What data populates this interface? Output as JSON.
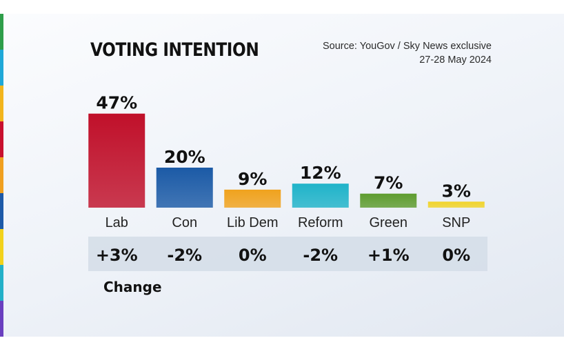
{
  "header": {
    "title": "VOTING INTENTION",
    "source_line1": "Source: YouGov / Sky News exclusive",
    "source_line2": "27-28 May 2024"
  },
  "change_caption": "Change",
  "accent_strip_colors": [
    "#2e9e4a",
    "#1fa8d8",
    "#f2b51c",
    "#c8102e",
    "#f0a020",
    "#1d5aa8",
    "#f2d21c",
    "#23b0c8",
    "#6a3fbf"
  ],
  "chart_data": {
    "type": "bar",
    "title": "VOTING INTENTION",
    "categories": [
      "Lab",
      "Con",
      "Lib Dem",
      "Reform",
      "Green",
      "SNP"
    ],
    "values": [
      47,
      20,
      9,
      12,
      7,
      3
    ],
    "value_labels": [
      "47%",
      "20%",
      "9%",
      "12%",
      "7%",
      "3%"
    ],
    "changes": [
      "+3%",
      "-2%",
      "0%",
      "-2%",
      "+1%",
      "0%"
    ],
    "colors": [
      "#c0102a",
      "#1b5aa6",
      "#f0a21d",
      "#1fb3c9",
      "#5e9c2f",
      "#f1d42b"
    ],
    "unit": "%"
  }
}
